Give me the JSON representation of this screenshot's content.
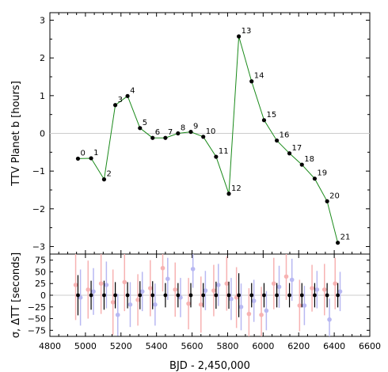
{
  "chart_data": [
    {
      "type": "line",
      "ylabel": "TTV Planet b [hours]",
      "ylim": [
        -3.2,
        3.2
      ],
      "yticks": [
        3,
        2,
        1,
        0,
        -1,
        -2,
        -3
      ],
      "ytick_labels": [
        "3",
        "2",
        "1",
        "0",
        "−1",
        "−2",
        "−3"
      ],
      "zero_line": true,
      "line_color": "#1a8a1a",
      "marker_color": "#000000",
      "series": [
        {
          "epochs": [
            "0",
            "1",
            "2",
            "3",
            "4",
            "5",
            "6",
            "7",
            "8",
            "9",
            "10",
            "11",
            "12",
            "13",
            "14",
            "15",
            "16",
            "17",
            "18",
            "19",
            "20",
            "21"
          ],
          "x": [
            4958,
            5032,
            5105,
            5168,
            5237,
            5307,
            5378,
            5450,
            5521,
            5593,
            5663,
            5735,
            5807,
            5863,
            5935,
            6005,
            6077,
            6148,
            6218,
            6290,
            6360,
            6420
          ],
          "y": [
            -0.67,
            -0.66,
            -1.22,
            0.75,
            0.99,
            0.14,
            -0.12,
            -0.12,
            0.0,
            0.04,
            -0.09,
            -0.62,
            -1.6,
            2.57,
            1.38,
            0.35,
            -0.19,
            -0.53,
            -0.83,
            -1.2,
            -1.8,
            -2.9
          ]
        }
      ]
    },
    {
      "type": "scatter",
      "xlabel": "BJD - 2,450,000",
      "ylabel": "σ, ΔTT [seconds]",
      "xlim": [
        4800,
        6600
      ],
      "xticks": [
        4800,
        5000,
        5200,
        5400,
        5600,
        5800,
        6000,
        6200,
        6400,
        6600
      ],
      "ylim": [
        -88,
        88
      ],
      "yticks": [
        75,
        50,
        25,
        0,
        -25,
        -50,
        -75
      ],
      "ytick_labels": [
        "75",
        "50",
        "25",
        "0",
        "−25",
        "−50",
        "−75"
      ],
      "series": [
        {
          "color": "#000000",
          "x": [
            4958,
            5032,
            5105,
            5168,
            5237,
            5307,
            5378,
            5450,
            5521,
            5593,
            5663,
            5735,
            5807,
            5863,
            5935,
            6005,
            6077,
            6148,
            6218,
            6290,
            6360,
            6420
          ],
          "y": [
            0,
            0,
            0,
            0,
            0,
            0,
            0,
            0,
            0,
            0,
            0,
            0,
            0,
            0,
            0,
            0,
            0,
            0,
            0,
            0,
            0,
            0
          ],
          "err": [
            43,
            31,
            31,
            28,
            28,
            30,
            30,
            26,
            26,
            26,
            26,
            29,
            29,
            47,
            26,
            26,
            26,
            26,
            26,
            26,
            26,
            26
          ]
        },
        {
          "color": "#f7b2b2",
          "x": [
            4945,
            5015,
            5088,
            5155,
            5220,
            5295,
            5365,
            5435,
            5505,
            5580,
            5650,
            5722,
            5795,
            5850,
            5920,
            5990,
            6060,
            6130,
            6205,
            6275,
            6345,
            6405
          ],
          "y": [
            22,
            12,
            25,
            -15,
            28,
            -10,
            15,
            58,
            12,
            -18,
            -20,
            10,
            25,
            -5,
            -40,
            -42,
            25,
            40,
            -22,
            15,
            12,
            25
          ],
          "err": [
            75,
            62,
            65,
            70,
            62,
            55,
            60,
            50,
            58,
            55,
            60,
            55,
            58,
            65,
            55,
            60,
            55,
            50,
            55,
            50,
            55,
            55
          ]
        },
        {
          "color": "#b8b8f2",
          "x": [
            4972,
            5045,
            5118,
            5182,
            5252,
            5320,
            5392,
            5463,
            5535,
            5605,
            5675,
            5748,
            5820,
            5876,
            5948,
            6018,
            6090,
            6162,
            6232,
            6303,
            6373,
            6433
          ],
          "y": [
            -5,
            8,
            22,
            -42,
            -20,
            8,
            -20,
            35,
            -5,
            56,
            10,
            22,
            -8,
            -25,
            -12,
            -33,
            18,
            33,
            -22,
            12,
            -52,
            8
          ],
          "err": [
            60,
            50,
            50,
            45,
            48,
            42,
            45,
            45,
            42,
            40,
            42,
            45,
            45,
            50,
            45,
            42,
            45,
            45,
            42,
            40,
            45,
            42
          ]
        }
      ]
    }
  ]
}
